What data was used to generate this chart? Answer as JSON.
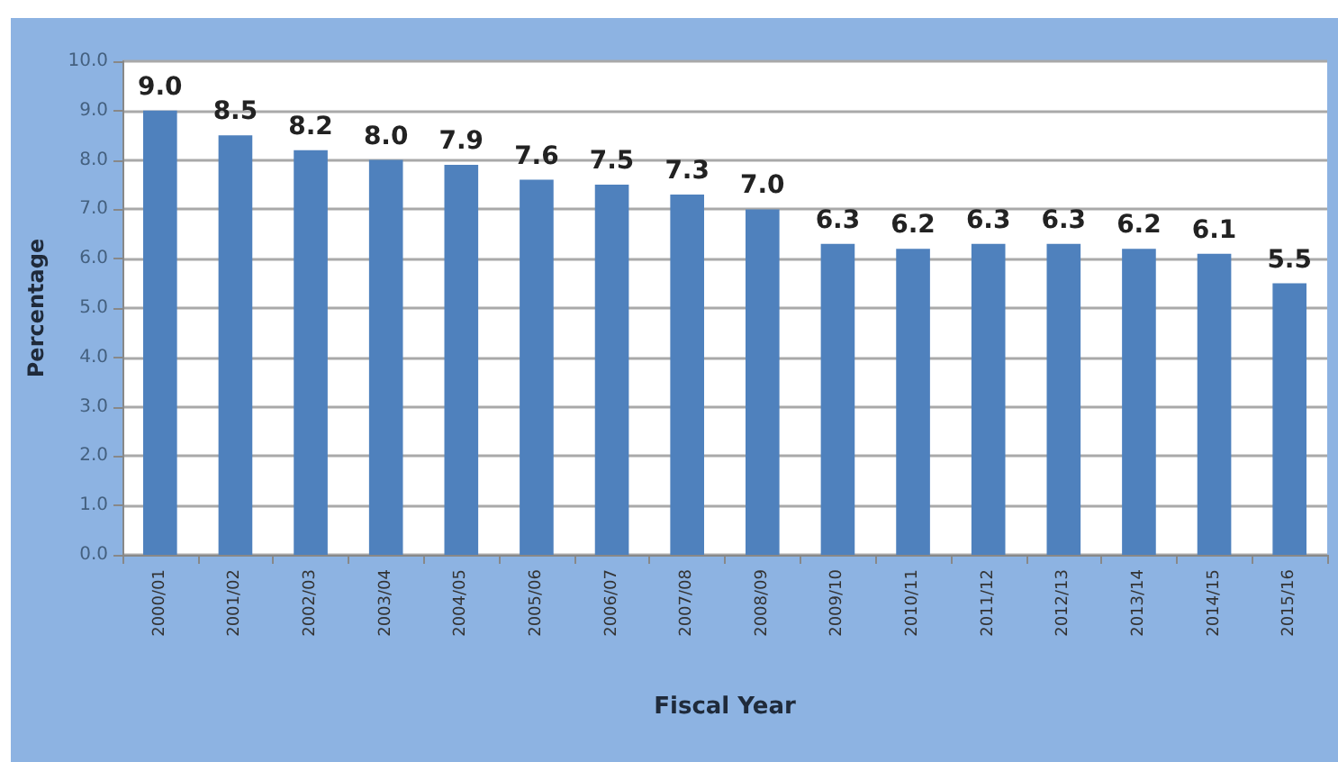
{
  "chart_data": {
    "type": "bar",
    "xlabel": "Fiscal Year",
    "ylabel": "Percentage",
    "categories": [
      "2000/01",
      "2001/02",
      "2002/03",
      "2003/04",
      "2004/05",
      "2005/06",
      "2006/07",
      "2007/08",
      "2008/09",
      "2009/10",
      "2010/11",
      "2011/12",
      "2012/13",
      "2013/14",
      "2014/15",
      "2015/16"
    ],
    "values": [
      9.0,
      8.5,
      8.2,
      8.0,
      7.9,
      7.6,
      7.5,
      7.3,
      7.0,
      6.3,
      6.2,
      6.3,
      6.3,
      6.2,
      6.1,
      5.5
    ],
    "value_labels": [
      "9.0",
      "8.5",
      "8.2",
      "8.0",
      "7.9",
      "7.6",
      "7.5",
      "7.3",
      "7.0",
      "6.3",
      "6.2",
      "6.3",
      "6.3",
      "6.2",
      "6.1",
      "5.5"
    ],
    "color": "#4f81bd",
    "ylim": [
      0,
      10
    ],
    "yticks": [
      {
        "value": 0,
        "label": "0.0"
      },
      {
        "value": 1,
        "label": "1.0"
      },
      {
        "value": 2,
        "label": "2.0"
      },
      {
        "value": 3,
        "label": "3.0"
      },
      {
        "value": 4,
        "label": "4.0"
      },
      {
        "value": 5,
        "label": "5.0"
      },
      {
        "value": 6,
        "label": "6.0"
      },
      {
        "value": 7,
        "label": "7.0"
      },
      {
        "value": 8,
        "label": "8.0"
      },
      {
        "value": 9,
        "label": "9.0"
      },
      {
        "value": 10,
        "label": "10.0"
      }
    ],
    "grid": "y"
  }
}
